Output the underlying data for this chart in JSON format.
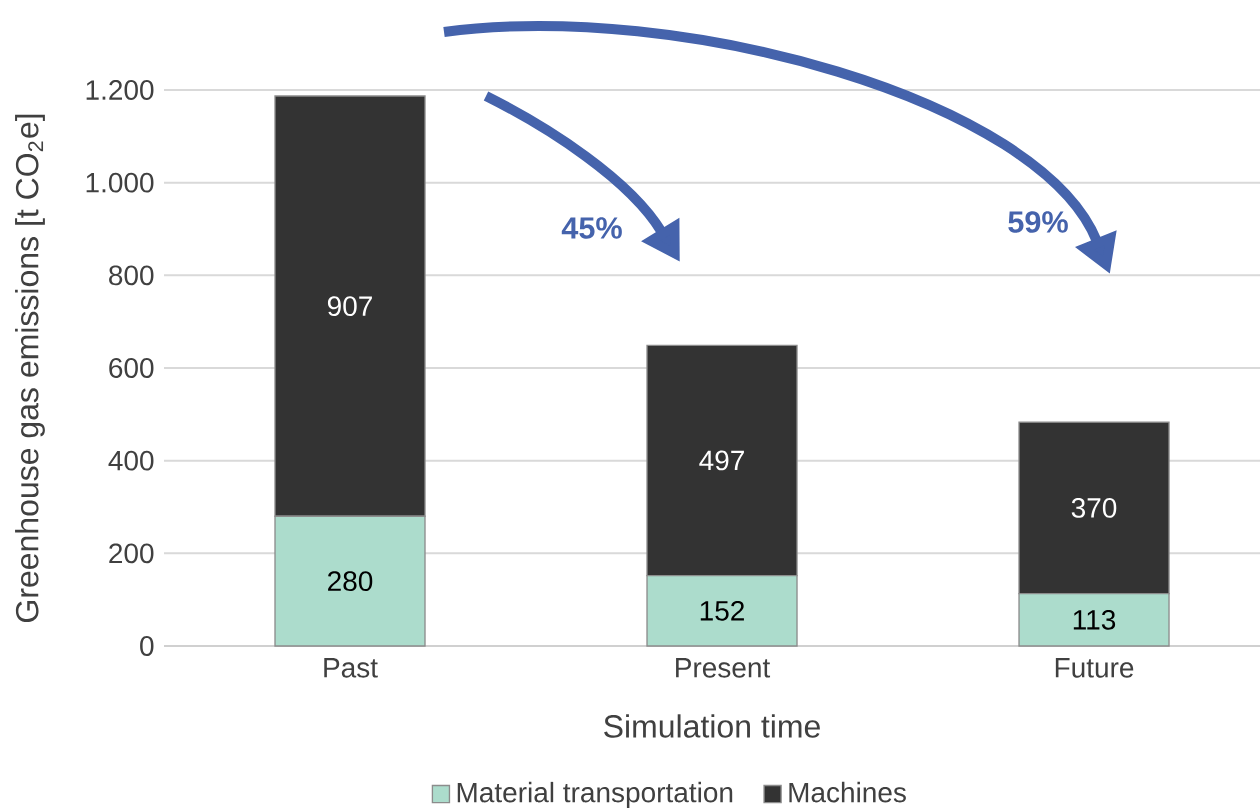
{
  "chart_data": {
    "type": "bar",
    "stacked": true,
    "xlabel": "Simulation time",
    "ylabel": "Greenhouse gas emissions [t CO$_{2}$e]",
    "categories": [
      "Past",
      "Present",
      "Future"
    ],
    "series": [
      {
        "name": "Material transportation",
        "color": "#acdccc",
        "values": [
          280,
          152,
          113
        ]
      },
      {
        "name": "Machines",
        "color": "#333333",
        "values": [
          907,
          497,
          370
        ]
      }
    ],
    "ylim": [
      0,
      1200
    ],
    "yticks": [
      0,
      200,
      400,
      600,
      800,
      {
        "value": 1000,
        "label": "1.000"
      },
      {
        "value": 1200,
        "label": "1.200"
      }
    ],
    "grid": "y",
    "legend": "bottom",
    "data_labels": true,
    "annotations": [
      "45%",
      "59%"
    ]
  }
}
